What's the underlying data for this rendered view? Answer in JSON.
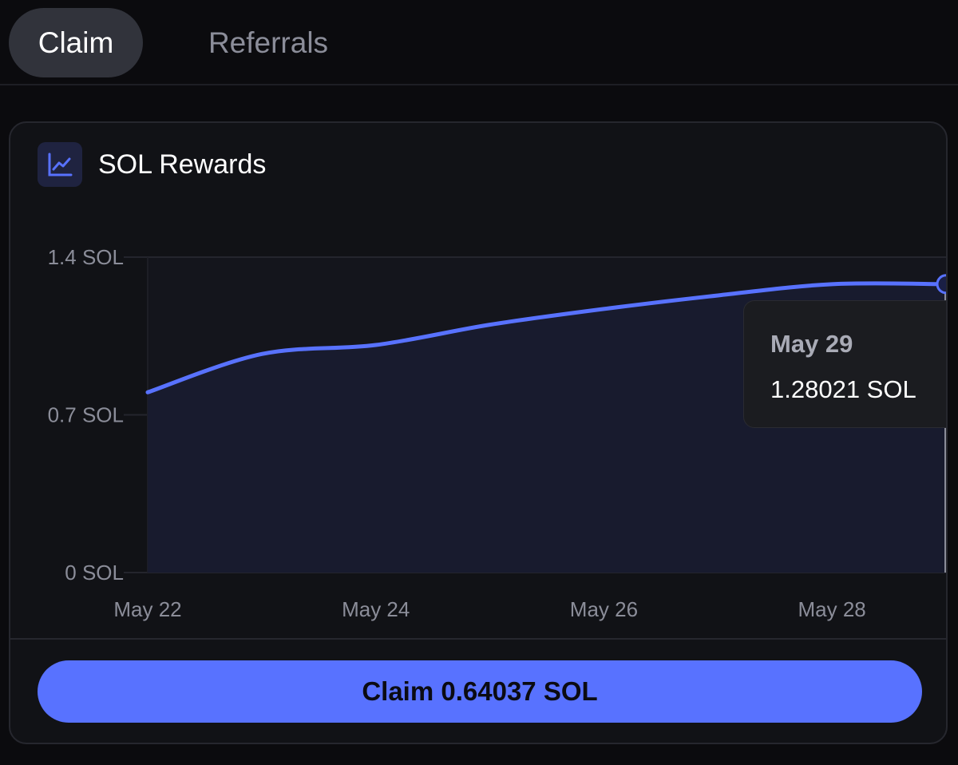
{
  "tabs": [
    {
      "label": "Claim",
      "active": true
    },
    {
      "label": "Referrals",
      "active": false
    }
  ],
  "card": {
    "title": "SOL Rewards",
    "icon": "line-chart-icon"
  },
  "tooltip": {
    "date": "May 29",
    "value": "1.28021 SOL"
  },
  "claim_button": {
    "label": "Claim 0.64037 SOL"
  },
  "colors": {
    "accent": "#5872ff",
    "background": "#0b0b0e",
    "card": "#111216"
  },
  "chart_data": {
    "type": "area",
    "title": "SOL Rewards",
    "x": [
      "May 22",
      "May 23",
      "May 24",
      "May 25",
      "May 26",
      "May 27",
      "May 28",
      "May 29"
    ],
    "values": [
      0.8,
      0.97,
      1.01,
      1.1,
      1.17,
      1.23,
      1.28,
      1.28021
    ],
    "ylim": [
      0,
      1.4
    ],
    "y_ticks": [
      "0 SOL",
      "0.7 SOL",
      "1.4 SOL"
    ],
    "x_ticks": [
      "May 22",
      "May 24",
      "May 26",
      "May 28"
    ],
    "grid": true,
    "highlighted_point": {
      "x": "May 29",
      "value": 1.28021
    }
  }
}
